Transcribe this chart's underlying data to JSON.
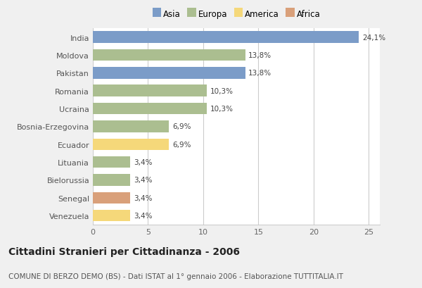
{
  "countries": [
    "India",
    "Moldova",
    "Pakistan",
    "Romania",
    "Ucraina",
    "Bosnia-Erzegovina",
    "Ecuador",
    "Lituania",
    "Bielorussia",
    "Senegal",
    "Venezuela"
  ],
  "values": [
    24.1,
    13.8,
    13.8,
    10.3,
    10.3,
    6.9,
    6.9,
    3.4,
    3.4,
    3.4,
    3.4
  ],
  "labels": [
    "24,1%",
    "13,8%",
    "13,8%",
    "10,3%",
    "10,3%",
    "6,9%",
    "6,9%",
    "3,4%",
    "3,4%",
    "3,4%",
    "3,4%"
  ],
  "continents": [
    "Asia",
    "Europa",
    "Asia",
    "Europa",
    "Europa",
    "Europa",
    "America",
    "Europa",
    "Europa",
    "Africa",
    "America"
  ],
  "colors": {
    "Asia": "#7b9cc8",
    "Europa": "#abbe90",
    "America": "#f5d87a",
    "Africa": "#d9a07a"
  },
  "legend_order": [
    "Asia",
    "Europa",
    "America",
    "Africa"
  ],
  "title": "Cittadini Stranieri per Cittadinanza - 2006",
  "subtitle": "COMUNE DI BERZO DEMO (BS) - Dati ISTAT al 1° gennaio 2006 - Elaborazione TUTTITALIA.IT",
  "xlim": [
    0,
    26
  ],
  "xticks": [
    0,
    5,
    10,
    15,
    20,
    25
  ],
  "background_color": "#f0f0f0",
  "bar_area_color": "#ffffff",
  "grid_color": "#cccccc",
  "title_fontsize": 10,
  "subtitle_fontsize": 7.5,
  "label_fontsize": 7.5,
  "ytick_fontsize": 8,
  "xtick_fontsize": 8,
  "legend_fontsize": 8.5
}
